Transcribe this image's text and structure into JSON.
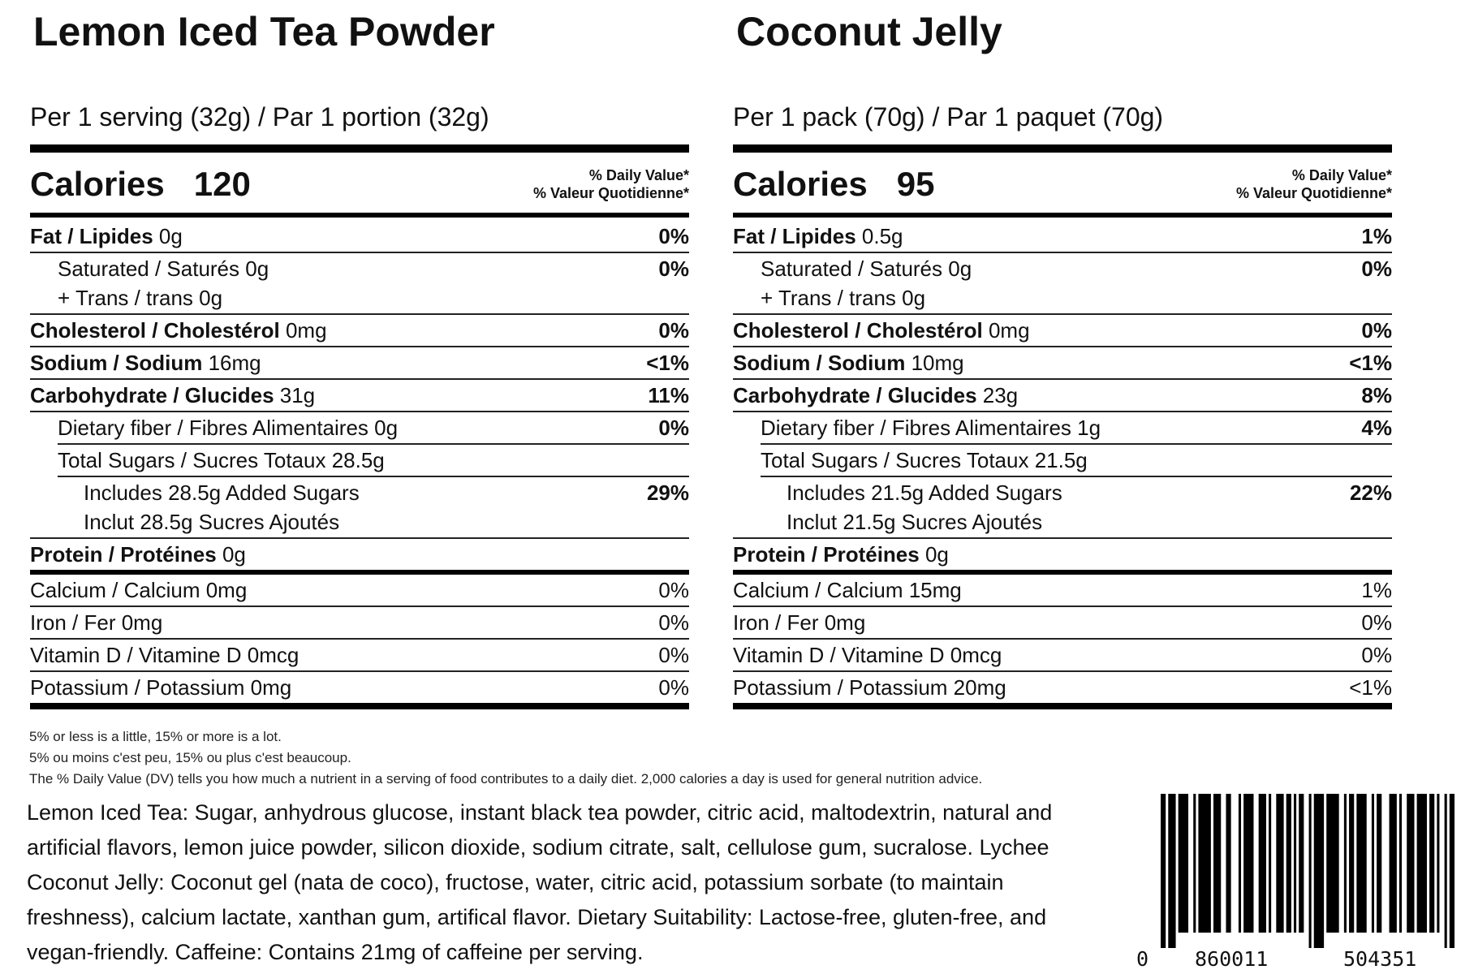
{
  "panels": [
    {
      "title": "Lemon Iced Tea Powder",
      "serving": "Per 1 serving (32g) / Par 1 portion (32g)",
      "calories_label": "Calories",
      "calories": "120",
      "dv_header": [
        "% Daily Value*",
        "% Valeur Quotidienne*"
      ],
      "rows": [
        {
          "bold": "Fat / Lipides",
          "rest": " 0g",
          "dv": "0%",
          "dv_bold": true
        },
        {
          "lines": [
            "Saturated / Saturés 0g",
            "+ Trans / trans 0g"
          ],
          "dv": "0%",
          "dv_bold": true,
          "indent": 1
        },
        {
          "bold": "Cholesterol / Cholestérol",
          "rest": " 0mg",
          "dv": "0%",
          "dv_bold": true
        },
        {
          "bold": "Sodium / Sodium",
          "rest": " 16mg",
          "dv": "<1%",
          "dv_bold": true
        },
        {
          "bold": "Carbohydrate / Glucides",
          "rest": " 31g",
          "dv": "11%",
          "dv_bold": true
        },
        {
          "rest": "Dietary fiber / Fibres Alimentaires 0g",
          "dv": "0%",
          "dv_bold": true,
          "indent": 1,
          "shift": true
        },
        {
          "rest": "Total Sugars / Sucres Totaux 28.5g",
          "dv": "",
          "indent": 1,
          "shift": true
        },
        {
          "lines": [
            "Includes 28.5g Added Sugars",
            "Inclut 28.5g Sucres Ajoutés"
          ],
          "dv": "29%",
          "dv_bold": true,
          "indent": 2
        },
        {
          "bold": "Protein / Protéines",
          "rest": " 0g",
          "dv": "",
          "thick": true
        },
        {
          "rest": "Calcium / Calcium 0mg",
          "dv": "0%"
        },
        {
          "rest": "Iron / Fer 0mg",
          "dv": "0%"
        },
        {
          "rest": "Vitamin D / Vitamine D  0mcg",
          "dv": "0%"
        },
        {
          "rest": "Potassium / Potassium  0mg",
          "dv": "0%",
          "last": true
        }
      ]
    },
    {
      "title": "Coconut Jelly",
      "serving": "Per 1 pack (70g) / Par 1 paquet (70g)",
      "calories_label": "Calories",
      "calories": "95",
      "dv_header": [
        "% Daily Value*",
        "% Valeur Quotidienne*"
      ],
      "rows": [
        {
          "bold": "Fat / Lipides",
          "rest": " 0.5g",
          "dv": "1%",
          "dv_bold": true
        },
        {
          "lines": [
            "Saturated / Saturés 0g",
            "+ Trans / trans 0g"
          ],
          "dv": "0%",
          "dv_bold": true,
          "indent": 1
        },
        {
          "bold": "Cholesterol / Cholestérol",
          "rest": " 0mg",
          "dv": "0%",
          "dv_bold": true
        },
        {
          "bold": "Sodium / Sodium",
          "rest": " 10mg",
          "dv": "<1%",
          "dv_bold": true
        },
        {
          "bold": "Carbohydrate / Glucides",
          "rest": " 23g",
          "dv": "8%",
          "dv_bold": true
        },
        {
          "rest": "Dietary fiber / Fibres Alimentaires 1g",
          "dv": "4%",
          "dv_bold": true,
          "indent": 1,
          "shift": true
        },
        {
          "rest": "Total Sugars / Sucres Totaux 21.5g",
          "dv": "",
          "indent": 1,
          "shift": true
        },
        {
          "lines": [
            "Includes 21.5g Added Sugars",
            "Inclut 21.5g Sucres Ajoutés"
          ],
          "dv": "22%",
          "dv_bold": true,
          "indent": 2
        },
        {
          "bold": "Protein / Protéines",
          "rest": " 0g",
          "dv": "",
          "thick": true
        },
        {
          "rest": "Calcium / Calcium 15mg",
          "dv": "1%"
        },
        {
          "rest": "Iron / Fer 0mg",
          "dv": "0%"
        },
        {
          "rest": "Vitamin D / Vitamine D  0mcg",
          "dv": "0%"
        },
        {
          "rest": "Potassium / Potassium  20mg",
          "dv": "<1%",
          "last": true
        }
      ]
    }
  ],
  "footnotes": [
    "5% or less is a little, 15% or more is a lot.",
    "5% ou moins c'est peu, 15% ou plus c'est beaucoup.",
    "The % Daily Value (DV) tells you how much a nutrient in a serving of food contributes to a daily diet. 2,000 calories a day is used for general nutrition advice."
  ],
  "ingredients": "Lemon Iced Tea: Sugar, anhydrous glucose, instant black tea powder, citric acid, maltodextrin, natural and artificial flavors, lemon juice powder, silicon dioxide, sodium citrate, salt, cellulose gum, sucralose. Lychee Coconut Jelly: Coconut gel (nata de coco), fructose, water, citric acid, potassium sorbate (to maintain freshness), calcium lactate, xanthan gum, artifical flavor. Dietary Suitability: Lactose-free, gluten-free, and vegan-friendly. Caffeine: Contains 21mg of caffeine per serving.",
  "barcode": {
    "lead": "0",
    "left": "860011",
    "right": "504351"
  }
}
